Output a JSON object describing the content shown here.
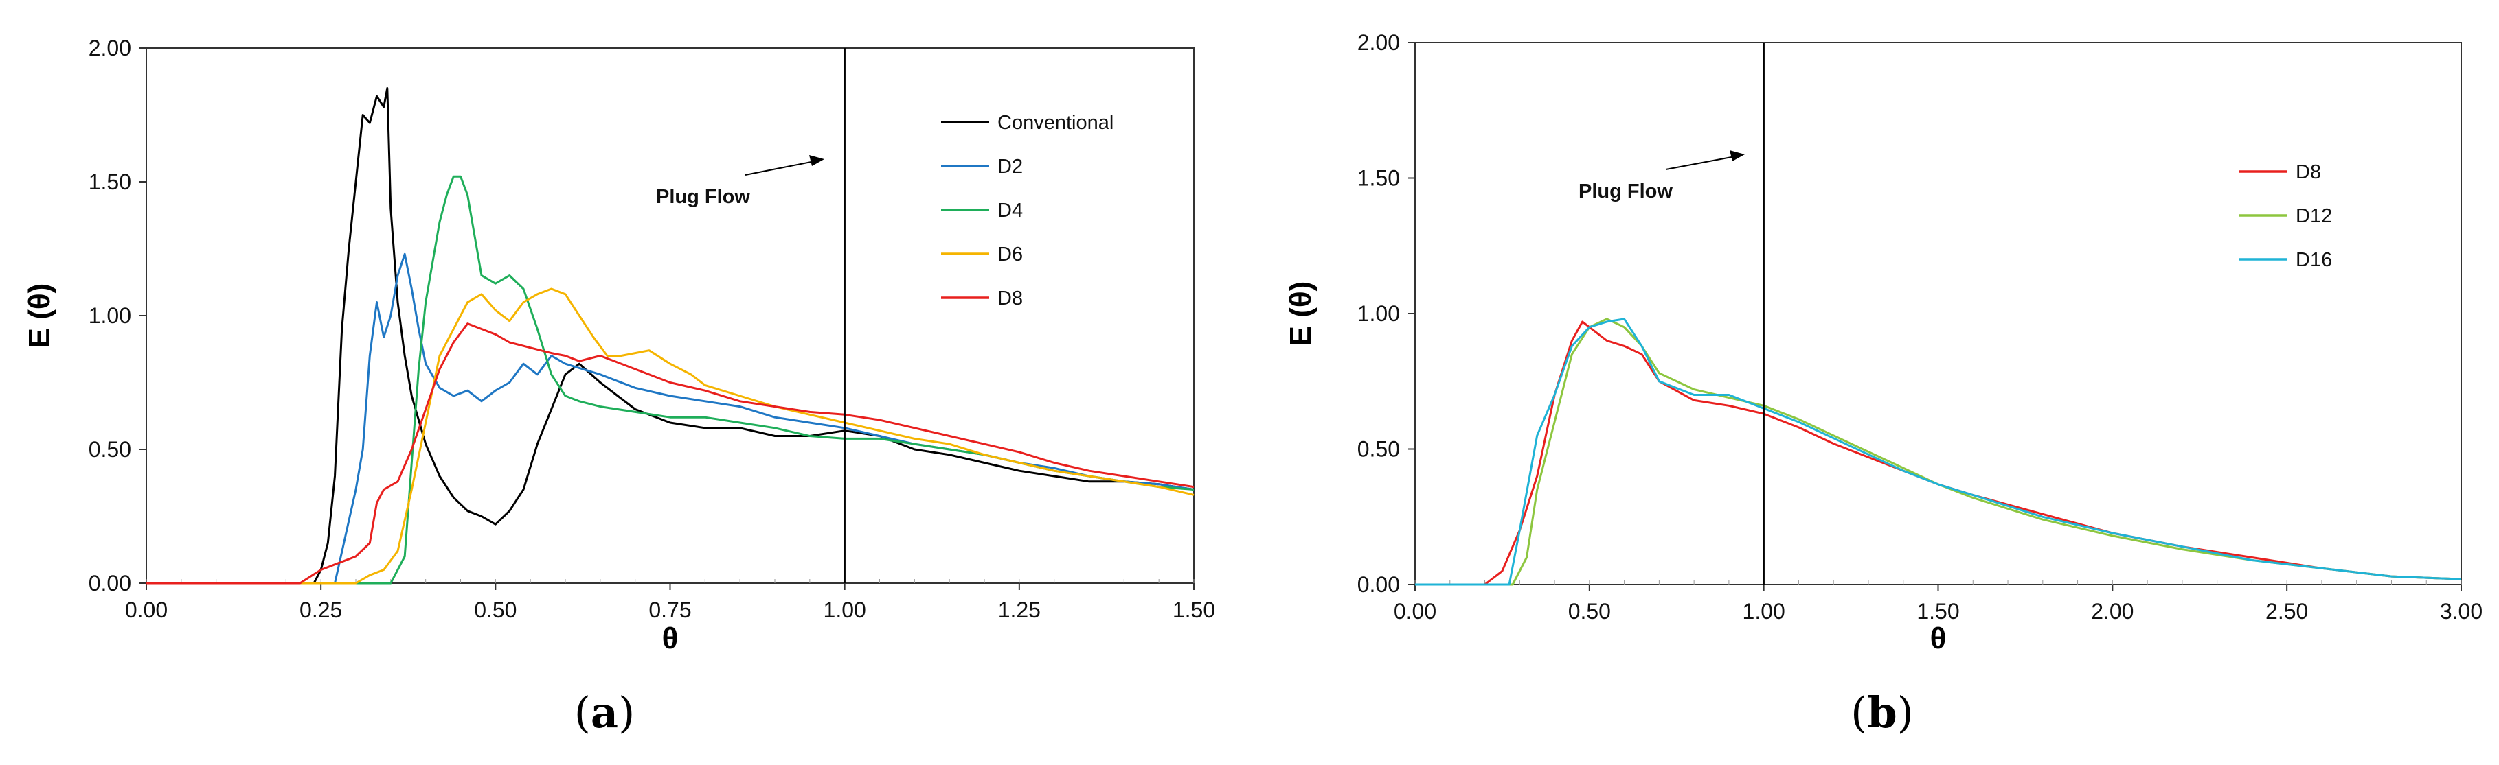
{
  "chart_data": [
    {
      "type": "line",
      "panel": "a",
      "caption": "a",
      "xlabel": "θ",
      "ylabel": "E (θ)",
      "xlim": [
        0,
        1.5
      ],
      "ylim": [
        0,
        2
      ],
      "xticks": [
        "0.00",
        "0.25",
        "0.50",
        "0.75",
        "1.00",
        "1.25",
        "1.50"
      ],
      "yticks": [
        "0.00",
        "0.50",
        "1.00",
        "1.50",
        "2.00"
      ],
      "vline": 1.0,
      "annotation": "Plug Flow",
      "legend_position": "top-right",
      "series": [
        {
          "name": "Conventional",
          "color": "#000000",
          "x": [
            0.24,
            0.25,
            0.26,
            0.27,
            0.28,
            0.29,
            0.3,
            0.31,
            0.32,
            0.33,
            0.34,
            0.345,
            0.35,
            0.36,
            0.37,
            0.38,
            0.4,
            0.42,
            0.44,
            0.46,
            0.48,
            0.5,
            0.52,
            0.54,
            0.56,
            0.58,
            0.6,
            0.62,
            0.65,
            0.7,
            0.75,
            0.8,
            0.85,
            0.9,
            0.95,
            1.0,
            1.05,
            1.1,
            1.15,
            1.2,
            1.25,
            1.3,
            1.35,
            1.4,
            1.45,
            1.5
          ],
          "y": [
            0.0,
            0.05,
            0.15,
            0.4,
            0.95,
            1.25,
            1.5,
            1.75,
            1.72,
            1.82,
            1.78,
            1.85,
            1.4,
            1.05,
            0.85,
            0.7,
            0.52,
            0.4,
            0.32,
            0.27,
            0.25,
            0.22,
            0.27,
            0.35,
            0.52,
            0.65,
            0.78,
            0.82,
            0.75,
            0.65,
            0.6,
            0.58,
            0.58,
            0.55,
            0.55,
            0.57,
            0.55,
            0.5,
            0.48,
            0.45,
            0.42,
            0.4,
            0.38,
            0.38,
            0.37,
            0.35
          ]
        },
        {
          "name": "D2",
          "color": "#1f77c4",
          "x": [
            0.27,
            0.3,
            0.31,
            0.32,
            0.33,
            0.34,
            0.35,
            0.36,
            0.37,
            0.38,
            0.39,
            0.4,
            0.42,
            0.44,
            0.46,
            0.48,
            0.5,
            0.52,
            0.54,
            0.56,
            0.58,
            0.6,
            0.65,
            0.7,
            0.75,
            0.8,
            0.85,
            0.9,
            0.95,
            1.0,
            1.05,
            1.1,
            1.15,
            1.2,
            1.25,
            1.3,
            1.35,
            1.4,
            1.45,
            1.5
          ],
          "y": [
            0.0,
            0.35,
            0.5,
            0.85,
            1.05,
            0.92,
            1.0,
            1.15,
            1.23,
            1.1,
            0.95,
            0.82,
            0.73,
            0.7,
            0.72,
            0.68,
            0.72,
            0.75,
            0.82,
            0.78,
            0.85,
            0.82,
            0.78,
            0.73,
            0.7,
            0.68,
            0.66,
            0.62,
            0.6,
            0.58,
            0.55,
            0.52,
            0.5,
            0.48,
            0.45,
            0.43,
            0.4,
            0.38,
            0.37,
            0.35
          ]
        },
        {
          "name": "D4",
          "color": "#1fae5a",
          "x": [
            0.35,
            0.37,
            0.38,
            0.39,
            0.4,
            0.41,
            0.42,
            0.43,
            0.44,
            0.45,
            0.46,
            0.47,
            0.48,
            0.5,
            0.52,
            0.54,
            0.56,
            0.58,
            0.6,
            0.62,
            0.65,
            0.7,
            0.75,
            0.8,
            0.85,
            0.9,
            0.95,
            1.0,
            1.05,
            1.1,
            1.15,
            1.2,
            1.25,
            1.3,
            1.35,
            1.4,
            1.45,
            1.5
          ],
          "y": [
            0.0,
            0.1,
            0.45,
            0.8,
            1.05,
            1.2,
            1.35,
            1.45,
            1.52,
            1.52,
            1.45,
            1.3,
            1.15,
            1.12,
            1.15,
            1.1,
            0.95,
            0.78,
            0.7,
            0.68,
            0.66,
            0.64,
            0.62,
            0.62,
            0.6,
            0.58,
            0.55,
            0.54,
            0.54,
            0.52,
            0.5,
            0.48,
            0.45,
            0.42,
            0.4,
            0.38,
            0.36,
            0.35
          ]
        },
        {
          "name": "D6",
          "color": "#f5b400",
          "x": [
            0.3,
            0.32,
            0.34,
            0.36,
            0.38,
            0.4,
            0.42,
            0.44,
            0.46,
            0.48,
            0.5,
            0.52,
            0.54,
            0.56,
            0.58,
            0.6,
            0.62,
            0.64,
            0.66,
            0.68,
            0.7,
            0.72,
            0.75,
            0.78,
            0.8,
            0.85,
            0.9,
            0.95,
            1.0,
            1.05,
            1.1,
            1.15,
            1.2,
            1.25,
            1.3,
            1.35,
            1.4,
            1.45,
            1.5
          ],
          "y": [
            0.0,
            0.03,
            0.05,
            0.12,
            0.35,
            0.6,
            0.85,
            0.95,
            1.05,
            1.08,
            1.02,
            0.98,
            1.05,
            1.08,
            1.1,
            1.08,
            1.0,
            0.92,
            0.85,
            0.85,
            0.86,
            0.87,
            0.82,
            0.78,
            0.74,
            0.7,
            0.66,
            0.63,
            0.6,
            0.57,
            0.54,
            0.52,
            0.48,
            0.45,
            0.42,
            0.4,
            0.38,
            0.36,
            0.33
          ]
        },
        {
          "name": "D8",
          "color": "#e8201e",
          "x": [
            0.22,
            0.25,
            0.28,
            0.3,
            0.32,
            0.33,
            0.34,
            0.36,
            0.38,
            0.4,
            0.42,
            0.44,
            0.46,
            0.48,
            0.5,
            0.52,
            0.55,
            0.58,
            0.6,
            0.62,
            0.65,
            0.7,
            0.75,
            0.8,
            0.85,
            0.9,
            0.95,
            1.0,
            1.05,
            1.1,
            1.15,
            1.2,
            1.25,
            1.3,
            1.35,
            1.4,
            1.45,
            1.5
          ],
          "y": [
            0.0,
            0.05,
            0.08,
            0.1,
            0.15,
            0.3,
            0.35,
            0.38,
            0.5,
            0.65,
            0.8,
            0.9,
            0.97,
            0.95,
            0.93,
            0.9,
            0.88,
            0.86,
            0.85,
            0.83,
            0.85,
            0.8,
            0.75,
            0.72,
            0.68,
            0.66,
            0.64,
            0.63,
            0.61,
            0.58,
            0.55,
            0.52,
            0.49,
            0.45,
            0.42,
            0.4,
            0.38,
            0.36
          ]
        }
      ]
    },
    {
      "type": "line",
      "panel": "b",
      "caption": "b",
      "xlabel": "θ",
      "ylabel": "E (θ)",
      "xlim": [
        0,
        3
      ],
      "ylim": [
        0,
        2
      ],
      "xticks": [
        "0.00",
        "0.50",
        "1.00",
        "1.50",
        "2.00",
        "2.50",
        "3.00"
      ],
      "yticks": [
        "0.00",
        "0.50",
        "1.00",
        "1.50",
        "2.00"
      ],
      "vline": 1.0,
      "annotation": "Plug Flow",
      "legend_position": "top-right",
      "series": [
        {
          "name": "D8",
          "color": "#e8201e",
          "x": [
            0.2,
            0.25,
            0.3,
            0.35,
            0.4,
            0.45,
            0.48,
            0.5,
            0.55,
            0.6,
            0.65,
            0.7,
            0.8,
            0.9,
            1.0,
            1.1,
            1.2,
            1.3,
            1.4,
            1.5,
            1.6,
            1.8,
            2.0,
            2.2,
            2.4,
            2.6,
            2.8,
            3.0
          ],
          "y": [
            0.0,
            0.05,
            0.2,
            0.4,
            0.7,
            0.9,
            0.97,
            0.95,
            0.9,
            0.88,
            0.85,
            0.75,
            0.68,
            0.66,
            0.63,
            0.58,
            0.52,
            0.47,
            0.42,
            0.37,
            0.33,
            0.26,
            0.19,
            0.14,
            0.1,
            0.06,
            0.03,
            0.02
          ]
        },
        {
          "name": "D12",
          "color": "#8dc63f",
          "x": [
            0.28,
            0.32,
            0.35,
            0.4,
            0.45,
            0.5,
            0.55,
            0.6,
            0.65,
            0.7,
            0.8,
            0.9,
            1.0,
            1.1,
            1.2,
            1.3,
            1.4,
            1.5,
            1.6,
            1.8,
            2.0,
            2.2,
            2.4,
            2.6,
            2.8,
            3.0
          ],
          "y": [
            0.0,
            0.1,
            0.35,
            0.6,
            0.85,
            0.95,
            0.98,
            0.95,
            0.88,
            0.78,
            0.72,
            0.69,
            0.66,
            0.61,
            0.55,
            0.49,
            0.43,
            0.37,
            0.32,
            0.24,
            0.18,
            0.13,
            0.09,
            0.06,
            0.03,
            0.02
          ]
        },
        {
          "name": "D16",
          "color": "#1fb3d6",
          "x": [
            0.27,
            0.3,
            0.35,
            0.4,
            0.45,
            0.5,
            0.55,
            0.6,
            0.65,
            0.7,
            0.8,
            0.9,
            1.0,
            1.1,
            1.2,
            1.3,
            1.4,
            1.5,
            1.6,
            1.8,
            2.0,
            2.2,
            2.4,
            2.6,
            2.8,
            3.0
          ],
          "y": [
            0.0,
            0.2,
            0.55,
            0.7,
            0.88,
            0.95,
            0.97,
            0.98,
            0.88,
            0.75,
            0.7,
            0.7,
            0.65,
            0.6,
            0.54,
            0.48,
            0.42,
            0.37,
            0.33,
            0.25,
            0.19,
            0.14,
            0.09,
            0.06,
            0.03,
            0.02
          ]
        }
      ]
    }
  ]
}
